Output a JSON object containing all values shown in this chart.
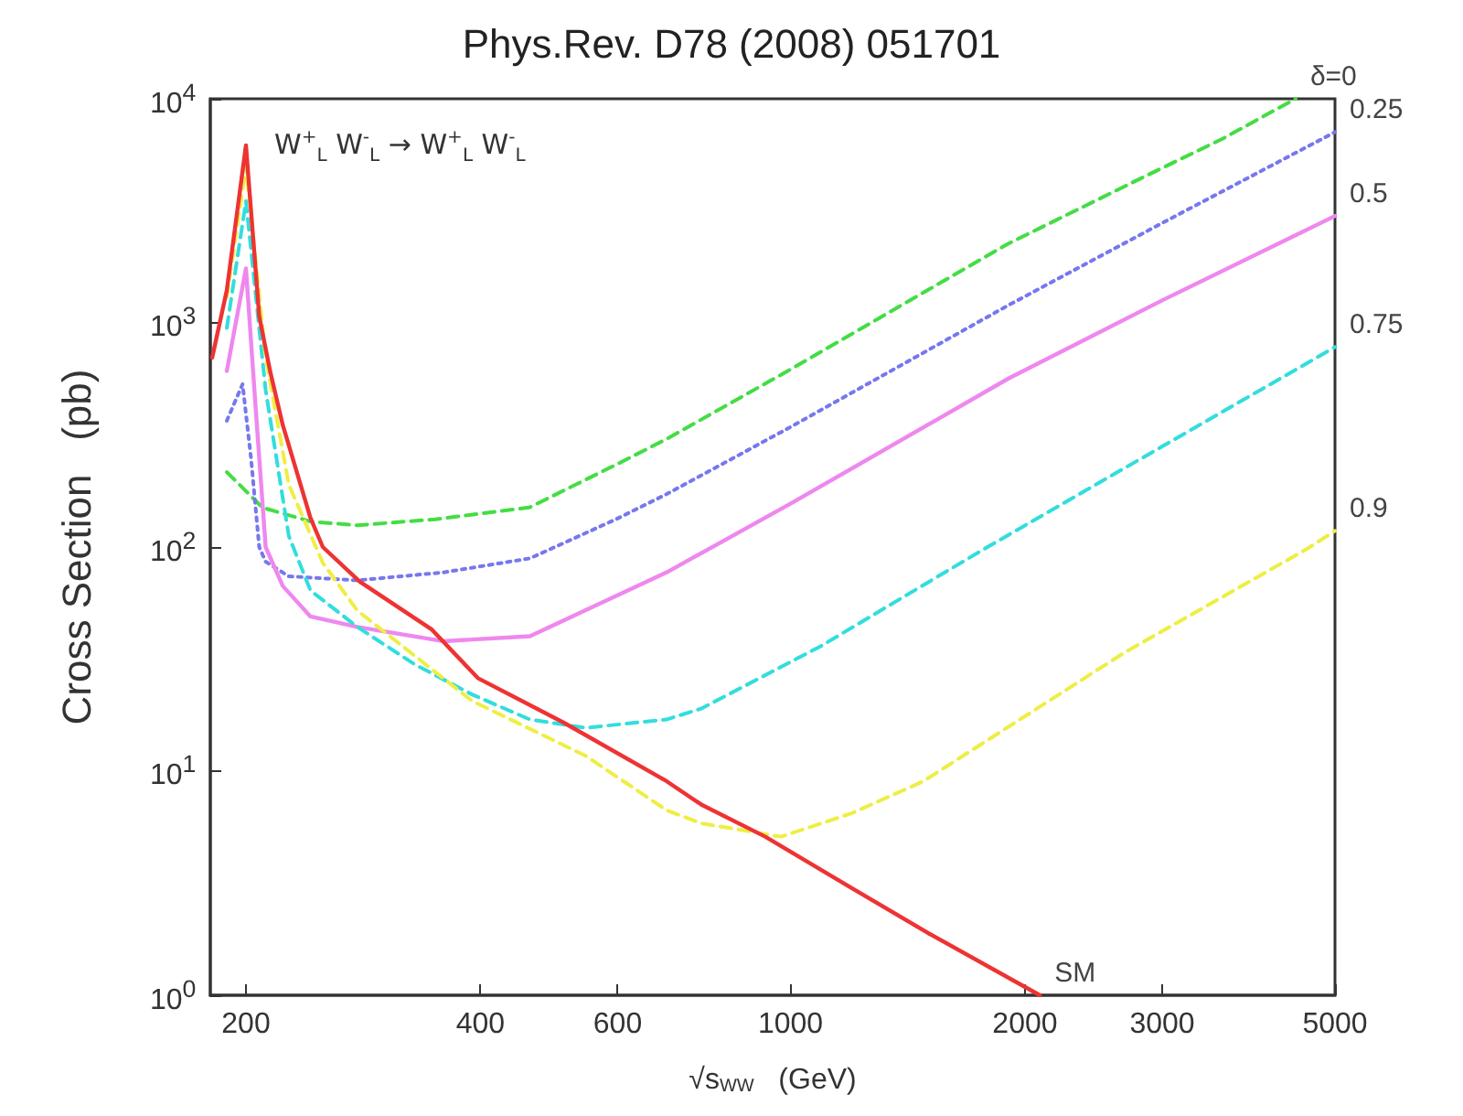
{
  "chart_data": {
    "type": "line",
    "title": "Phys.Rev. D78 (2008) 051701",
    "xlabel": "√s$_{WW}$   (GeV)",
    "ylabel": "Cross Section   (pb)",
    "annotations": [
      "W$^{+}$$_{L}$ W$^{-}$$_{L}$ → W$^{+}$$_{L}$ W$^{-}$$_{L}$"
    ],
    "log": "xy",
    "grid": false,
    "marker": "none",
    "xlim": [
      180,
      5000
    ],
    "xticks": [
      200,
      400,
      600,
      1000,
      2000,
      3000,
      5000
    ],
    "ylim": [
      1,
      10000
    ],
    "yticks": [
      {
        "value": 1,
        "label": "10$^{0}$"
      },
      {
        "value": 10,
        "label": "10$^{1}$"
      },
      {
        "value": 100,
        "label": "10$^{2}$"
      },
      {
        "value": 1000,
        "label": "10$^{3}$"
      },
      {
        "value": 10000,
        "label": "10$^{4}$"
      }
    ],
    "series": [
      {
        "name": "δ=0",
        "color": "#44dd44",
        "line_style": "dashed",
        "x": [
          189,
          210,
          242,
          278,
          350,
          462,
          600,
          693,
          1000,
          1400,
          1905,
          2800,
          3600,
          4450
        ],
        "values": [
          216,
          150,
          130,
          125,
          133,
          150,
          235,
          303,
          620,
          1220,
          2260,
          4370,
          6680,
          10000
        ]
      },
      {
        "name": "0.25",
        "color": "#7777ee",
        "line_style": "dotted",
        "x": [
          189,
          198,
          203,
          208,
          212,
          227,
          278,
          358,
          463,
          597,
          693,
          1000,
          1905,
          3000,
          5000
        ],
        "values": [
          366,
          533,
          250,
          100,
          86,
          74,
          71,
          77,
          89,
          133,
          172,
          343,
          1200,
          2790,
          7100
        ]
      },
      {
        "name": "0.5",
        "color": "#ee88ee",
        "line_style": "solid",
        "x": [
          189,
          200,
          206,
          212,
          223,
          242,
          278,
          358,
          463,
          693,
          1000,
          1905,
          3000,
          5000
        ],
        "values": [
          610,
          1750,
          400,
          100,
          67,
          49,
          44,
          38,
          40,
          77,
          156,
          565,
          1260,
          3000
        ]
      },
      {
        "name": "0.75",
        "color": "#33dddd",
        "line_style": "dashed",
        "x": [
          189,
          200,
          212,
          227,
          242,
          278,
          329,
          390,
          463,
          546,
          693,
          768,
          1092,
          1790,
          3000,
          5000
        ],
        "values": [
          950,
          3500,
          500,
          112,
          64,
          44,
          30,
          22,
          17,
          15.6,
          17,
          19,
          36,
          100,
          281,
          780
        ]
      },
      {
        "name": "0.9",
        "color": "#eeee44",
        "line_style": "dashed",
        "x": [
          189,
          200,
          212,
          227,
          251,
          278,
          390,
          546,
          693,
          768,
          973,
          1200,
          1480,
          2680,
          4600,
          5000
        ],
        "values": [
          1300,
          5000,
          700,
          190,
          85,
          52,
          20.6,
          11.7,
          6.7,
          5.85,
          5.1,
          6.5,
          9.0,
          33.7,
          98,
          118
        ]
      },
      {
        "name": "SM",
        "color": "#ee3333",
        "line_style": "solid",
        "x": [
          181,
          189,
          200,
          208,
          215,
          223,
          242,
          251,
          280,
          346,
          397,
          511,
          694,
          768,
          928,
          1200,
          1500,
          2090
        ],
        "values": [
          700,
          1400,
          6200,
          1070,
          600,
          350,
          135,
          100,
          70,
          43,
          26,
          16.5,
          9.0,
          7.1,
          5.1,
          3.0,
          1.9,
          1.0
        ]
      }
    ]
  }
}
